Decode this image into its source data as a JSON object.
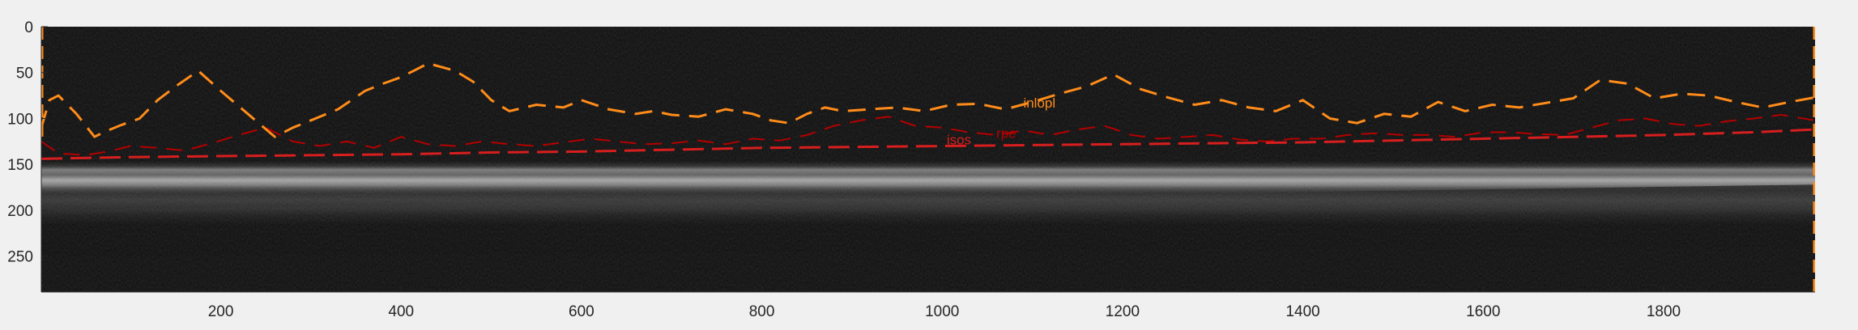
{
  "chart_data": {
    "type": "line",
    "title": "",
    "xlabel": "",
    "ylabel": "",
    "xlim": [
      1,
      1968
    ],
    "ylim": [
      0,
      289
    ],
    "y_reversed": true,
    "grid": false,
    "background": "grayscale OCT B-scan image",
    "xticks": [
      200,
      400,
      600,
      800,
      1000,
      1200,
      1400,
      1600,
      1800
    ],
    "yticks": [
      0,
      50,
      100,
      150,
      200,
      250
    ],
    "colors": {
      "inlopl": "#ff8c1a",
      "isos": "#d81e1e",
      "rpe": "#b50000",
      "axes_bg": "#0c0c0c",
      "figure_bg": "#f0f0f0"
    },
    "annotations": [
      {
        "text": "inlopl",
        "x": 1090,
        "y": 88,
        "series": "inlopl"
      },
      {
        "text": "isos",
        "x": 1005,
        "y": 128,
        "series": "isos"
      },
      {
        "text": "rpe",
        "x": 1060,
        "y": 121,
        "series": "rpe"
      }
    ],
    "series": [
      {
        "name": "inlopl",
        "style": "dashed",
        "x": [
          1,
          10,
          20,
          40,
          60,
          70,
          90,
          110,
          130,
          150,
          175,
          200,
          230,
          260,
          280,
          300,
          330,
          360,
          380,
          400,
          430,
          460,
          480,
          500,
          520,
          550,
          580,
          600,
          630,
          660,
          680,
          700,
          730,
          760,
          790,
          810,
          830,
          850,
          870,
          890,
          920,
          950,
          980,
          1010,
          1040,
          1070,
          1100,
          1130,
          1160,
          1190,
          1220,
          1250,
          1280,
          1310,
          1340,
          1370,
          1400,
          1430,
          1460,
          1490,
          1520,
          1550,
          1580,
          1610,
          1640,
          1670,
          1700,
          1730,
          1760,
          1790,
          1820,
          1850,
          1880,
          1910,
          1940,
          1968
        ],
        "y": [
          110,
          80,
          75,
          95,
          120,
          115,
          107,
          100,
          80,
          65,
          48,
          70,
          95,
          120,
          110,
          102,
          90,
          70,
          62,
          55,
          40,
          48,
          60,
          80,
          92,
          85,
          88,
          80,
          90,
          95,
          92,
          96,
          98,
          90,
          95,
          102,
          105,
          95,
          88,
          92,
          90,
          88,
          92,
          85,
          84,
          90,
          82,
          73,
          65,
          52,
          68,
          77,
          85,
          80,
          88,
          92,
          80,
          100,
          105,
          95,
          98,
          82,
          92,
          85,
          88,
          83,
          78,
          58,
          62,
          78,
          73,
          75,
          82,
          88,
          82,
          77
        ]
      },
      {
        "name": "rpe",
        "style": "dashed",
        "x": [
          1,
          20,
          50,
          80,
          100,
          130,
          160,
          190,
          220,
          250,
          280,
          310,
          340,
          370,
          400,
          430,
          460,
          490,
          520,
          550,
          580,
          610,
          640,
          670,
          700,
          730,
          760,
          790,
          820,
          850,
          880,
          910,
          940,
          970,
          1000,
          1030,
          1060,
          1090,
          1120,
          1150,
          1180,
          1210,
          1240,
          1270,
          1300,
          1330,
          1360,
          1390,
          1420,
          1450,
          1480,
          1510,
          1540,
          1570,
          1600,
          1630,
          1660,
          1690,
          1720,
          1750,
          1780,
          1810,
          1840,
          1870,
          1900,
          1930,
          1968
        ],
        "y": [
          125,
          138,
          140,
          135,
          130,
          132,
          135,
          127,
          118,
          110,
          125,
          130,
          125,
          132,
          120,
          128,
          130,
          125,
          128,
          130,
          126,
          122,
          125,
          128,
          127,
          124,
          128,
          122,
          124,
          118,
          108,
          102,
          98,
          108,
          110,
          115,
          118,
          113,
          118,
          112,
          108,
          118,
          122,
          120,
          118,
          123,
          125,
          122,
          122,
          118,
          116,
          118,
          118,
          120,
          115,
          115,
          117,
          118,
          110,
          102,
          100,
          106,
          108,
          103,
          100,
          96,
          102
        ]
      },
      {
        "name": "isos",
        "style": "dashed",
        "x": [
          1,
          100,
          200,
          300,
          400,
          500,
          600,
          700,
          800,
          900,
          1000,
          1100,
          1200,
          1300,
          1400,
          1500,
          1600,
          1700,
          1800,
          1900,
          1968
        ],
        "y": [
          144,
          142,
          141,
          140,
          139,
          137,
          136,
          134,
          132,
          131,
          130,
          129,
          128,
          127,
          126,
          124,
          122,
          120,
          118,
          115,
          112
        ]
      }
    ]
  }
}
